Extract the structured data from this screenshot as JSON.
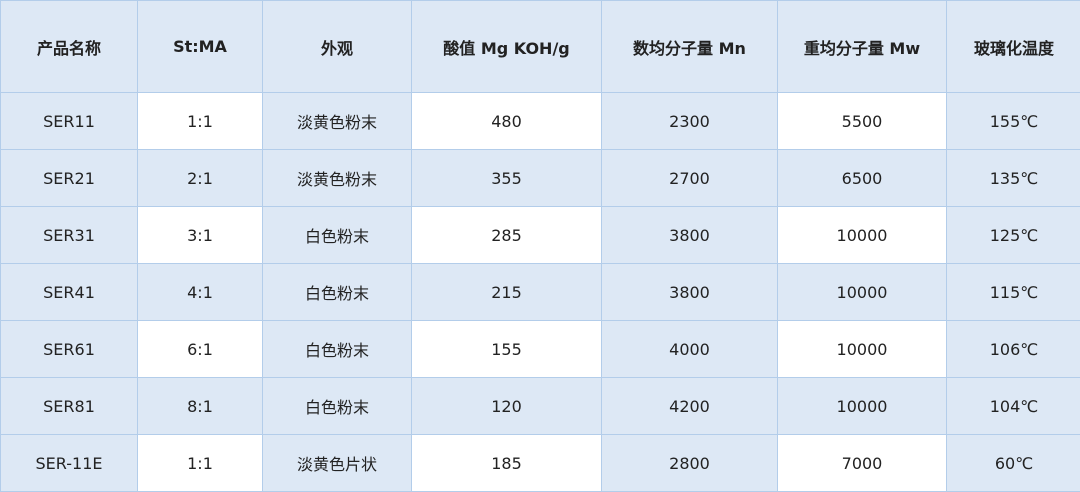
{
  "table": {
    "headers": [
      "产品名称",
      "St:MA",
      "外观",
      "酸值 Mg KOH/g",
      "数均分子量 Mn",
      "重均分子量 Mw",
      "玻璃化温度"
    ],
    "rows": [
      [
        "SER11",
        "1:1",
        "淡黄色粉末",
        "480",
        "2300",
        "5500",
        "155℃"
      ],
      [
        "SER21",
        "2:1",
        "淡黄色粉末",
        "355",
        "2700",
        "6500",
        "135℃"
      ],
      [
        "SER31",
        "3:1",
        "白色粉末",
        "285",
        "3800",
        "10000",
        "125℃"
      ],
      [
        "SER41",
        "4:1",
        "白色粉末",
        "215",
        "3800",
        "10000",
        "115℃"
      ],
      [
        "SER61",
        "6:1",
        "白色粉末",
        "155",
        "4000",
        "10000",
        "106℃"
      ],
      [
        "SER81",
        "8:1",
        "白色粉末",
        "120",
        "4200",
        "10000",
        "104℃"
      ],
      [
        "SER-11E",
        "1:1",
        "淡黄色片状",
        "185",
        "2800",
        "7000",
        "60℃"
      ]
    ]
  },
  "colors": {
    "cell_blue": "#dde8f5",
    "cell_white": "#ffffff",
    "border": "#b3cdea"
  }
}
